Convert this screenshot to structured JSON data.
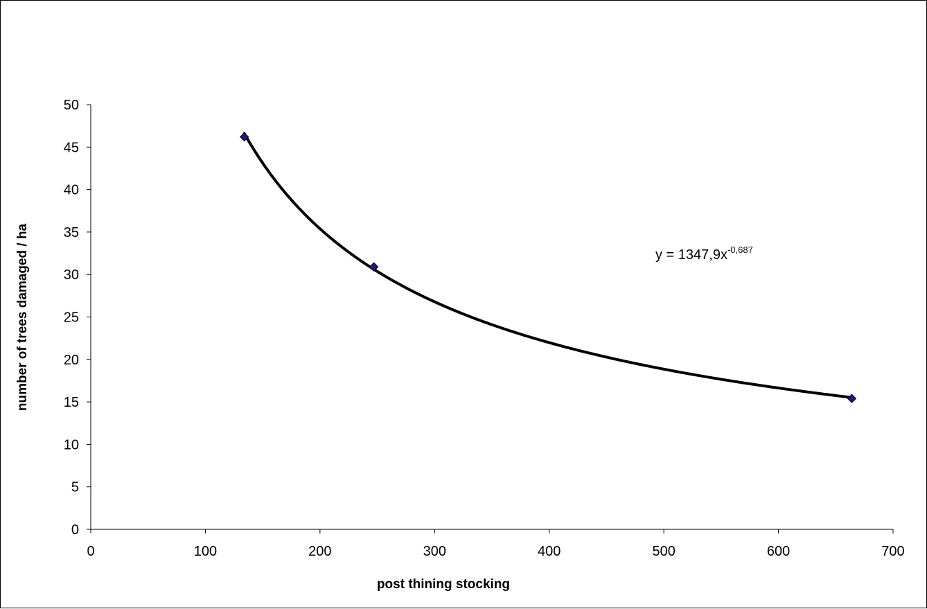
{
  "chart_data": {
    "type": "scatter",
    "title": "",
    "xlabel": "post thining stocking",
    "ylabel": "number of  trees damaged / ha",
    "xlim": [
      0,
      700
    ],
    "ylim": [
      0,
      50
    ],
    "x_ticks": [
      0,
      100,
      200,
      300,
      400,
      500,
      600,
      700
    ],
    "y_ticks": [
      0,
      5,
      10,
      15,
      20,
      25,
      30,
      35,
      40,
      45,
      50
    ],
    "x_tick_labels": [
      "0",
      "100",
      "200",
      "300",
      "400",
      "500",
      "600",
      "700"
    ],
    "y_tick_labels": [
      "0",
      "5",
      "10",
      "15",
      "20",
      "25",
      "30",
      "35",
      "40",
      "45",
      "50"
    ],
    "grid": false,
    "legend": "none",
    "series": [
      {
        "x": [
          134,
          247,
          664
        ],
        "y": [
          46.2,
          30.9,
          15.4
        ],
        "marker": "diamond",
        "marker_color": "#1a1a8c"
      }
    ],
    "trendline": {
      "type": "power",
      "coefficient": 1347.9,
      "exponent": -0.687,
      "x_range": [
        134,
        664
      ],
      "color": "#000000",
      "equation_text": "y = 1347,9x",
      "equation_exponent_text": "-0,687"
    }
  }
}
